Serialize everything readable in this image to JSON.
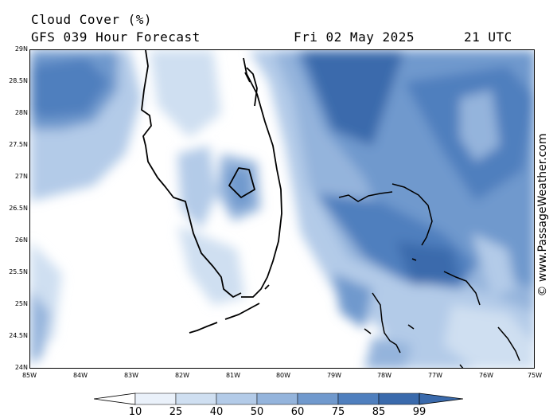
{
  "header": {
    "title": "Cloud Cover (%)",
    "subtitle": "GFS 039 Hour Forecast",
    "date": "Fri 02 May 2025",
    "utc": "21 UTC"
  },
  "credit": "© www.PassageWeather.com",
  "axes": {
    "lat_ticks": [
      "29N",
      "28.5N",
      "28N",
      "27.5N",
      "27N",
      "26.5N",
      "26N",
      "25.5N",
      "25N",
      "24.5N",
      "24N"
    ],
    "lon_ticks": [
      "85W",
      "84W",
      "83W",
      "82W",
      "81W",
      "80W",
      "79W",
      "78W",
      "77W",
      "76W",
      "75W"
    ]
  },
  "legend": {
    "levels": [
      "10",
      "25",
      "40",
      "50",
      "60",
      "75",
      "85",
      "99"
    ],
    "colors": [
      "#ffffff",
      "#eaf1fa",
      "#cfdff1",
      "#b3cbe8",
      "#94b4dc",
      "#7099cd",
      "#4f7fbe",
      "#3a6aac"
    ]
  },
  "colors": {
    "land_outline": "#000000",
    "cloud_low": "#eaf1fa",
    "cloud_mid": "#94b4dc",
    "cloud_high": "#3a6aac"
  }
}
